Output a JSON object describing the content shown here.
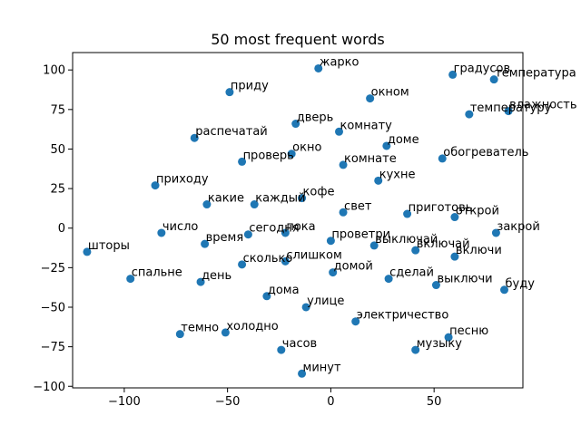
{
  "chart_data": {
    "type": "scatter",
    "title": "50 most frequent words",
    "xlabel": "",
    "ylabel": "",
    "xlim": [
      -125,
      93
    ],
    "ylim": [
      -101,
      111
    ],
    "xticks": [
      -100,
      -50,
      0,
      50
    ],
    "yticks": [
      -100,
      -75,
      -50,
      -25,
      0,
      25,
      50,
      75,
      100
    ],
    "grid": false,
    "color": "#1f77b4",
    "points": [
      {
        "label": "жарко",
        "x": -6,
        "y": 101
      },
      {
        "label": "градусов",
        "x": 59,
        "y": 97
      },
      {
        "label": "температура",
        "x": 79,
        "y": 94
      },
      {
        "label": "приду",
        "x": -49,
        "y": 86
      },
      {
        "label": "окном",
        "x": 19,
        "y": 82
      },
      {
        "label": "влажность",
        "x": 86,
        "y": 74
      },
      {
        "label": "температуру",
        "x": 67,
        "y": 72
      },
      {
        "label": "дверь",
        "x": -17,
        "y": 66
      },
      {
        "label": "комнату",
        "x": 4,
        "y": 61
      },
      {
        "label": "распечатай",
        "x": -66,
        "y": 57
      },
      {
        "label": "доме",
        "x": 27,
        "y": 52
      },
      {
        "label": "окно",
        "x": -19,
        "y": 47
      },
      {
        "label": "обогреватель",
        "x": 54,
        "y": 44
      },
      {
        "label": "проверь",
        "x": -43,
        "y": 42
      },
      {
        "label": "комнате",
        "x": 6,
        "y": 40
      },
      {
        "label": "кухне",
        "x": 23,
        "y": 30
      },
      {
        "label": "приходу",
        "x": -85,
        "y": 27
      },
      {
        "label": "кофе",
        "x": -14,
        "y": 19
      },
      {
        "label": "каждый",
        "x": -37,
        "y": 15
      },
      {
        "label": "какие",
        "x": -60,
        "y": 15
      },
      {
        "label": "свет",
        "x": 6,
        "y": 10
      },
      {
        "label": "приготовь",
        "x": 37,
        "y": 9
      },
      {
        "label": "открой",
        "x": 60,
        "y": 7
      },
      {
        "label": "число",
        "x": -82,
        "y": -3
      },
      {
        "label": "сегодня",
        "x": -40,
        "y": -4
      },
      {
        "label": "пока",
        "x": -22,
        "y": -3
      },
      {
        "label": "закрой",
        "x": 80,
        "y": -3
      },
      {
        "label": "время",
        "x": -61,
        "y": -10
      },
      {
        "label": "проветри",
        "x": 0,
        "y": -8
      },
      {
        "label": "выключай",
        "x": 21,
        "y": -11
      },
      {
        "label": "включай",
        "x": 41,
        "y": -14
      },
      {
        "label": "шторы",
        "x": -118,
        "y": -15
      },
      {
        "label": "включи",
        "x": 60,
        "y": -18
      },
      {
        "label": "слишком",
        "x": -22,
        "y": -21
      },
      {
        "label": "сколько",
        "x": -43,
        "y": -23
      },
      {
        "label": "домой",
        "x": 1,
        "y": -28
      },
      {
        "label": "спальне",
        "x": -97,
        "y": -32
      },
      {
        "label": "сделай",
        "x": 28,
        "y": -32
      },
      {
        "label": "день",
        "x": -63,
        "y": -34
      },
      {
        "label": "выключи",
        "x": 51,
        "y": -36
      },
      {
        "label": "буду",
        "x": 84,
        "y": -39
      },
      {
        "label": "дома",
        "x": -31,
        "y": -43
      },
      {
        "label": "улице",
        "x": -12,
        "y": -50
      },
      {
        "label": "электричество",
        "x": 12,
        "y": -59
      },
      {
        "label": "холодно",
        "x": -51,
        "y": -66
      },
      {
        "label": "темно",
        "x": -73,
        "y": -67
      },
      {
        "label": "песню",
        "x": 57,
        "y": -69
      },
      {
        "label": "часов",
        "x": -24,
        "y": -77
      },
      {
        "label": "музыку",
        "x": 41,
        "y": -77
      },
      {
        "label": "минут",
        "x": -14,
        "y": -92
      }
    ]
  }
}
